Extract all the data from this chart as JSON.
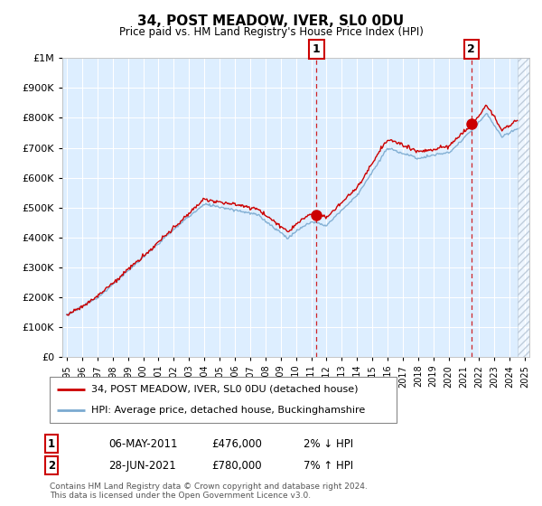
{
  "title": "34, POST MEADOW, IVER, SL0 0DU",
  "subtitle": "Price paid vs. HM Land Registry's House Price Index (HPI)",
  "legend_line1": "34, POST MEADOW, IVER, SL0 0DU (detached house)",
  "legend_line2": "HPI: Average price, detached house, Buckinghamshire",
  "sale1_date": "06-MAY-2011",
  "sale1_price": "£476,000",
  "sale1_hpi": "2% ↓ HPI",
  "sale1_year": 2011.35,
  "sale1_value": 476000,
  "sale2_date": "28-JUN-2021",
  "sale2_price": "£780,000",
  "sale2_hpi": "7% ↑ HPI",
  "sale2_year": 2021.49,
  "sale2_value": 780000,
  "footer": "Contains HM Land Registry data © Crown copyright and database right 2024.\nThis data is licensed under the Open Government Licence v3.0.",
  "ylim": [
    0,
    1000000
  ],
  "xlim_start": 1994.7,
  "xlim_end": 2025.3,
  "chart_bg": "#ddeeff",
  "red_color": "#cc0000",
  "blue_color": "#7aaad0",
  "hatch_color": "#c0d0e0",
  "grid_color": "#ffffff"
}
